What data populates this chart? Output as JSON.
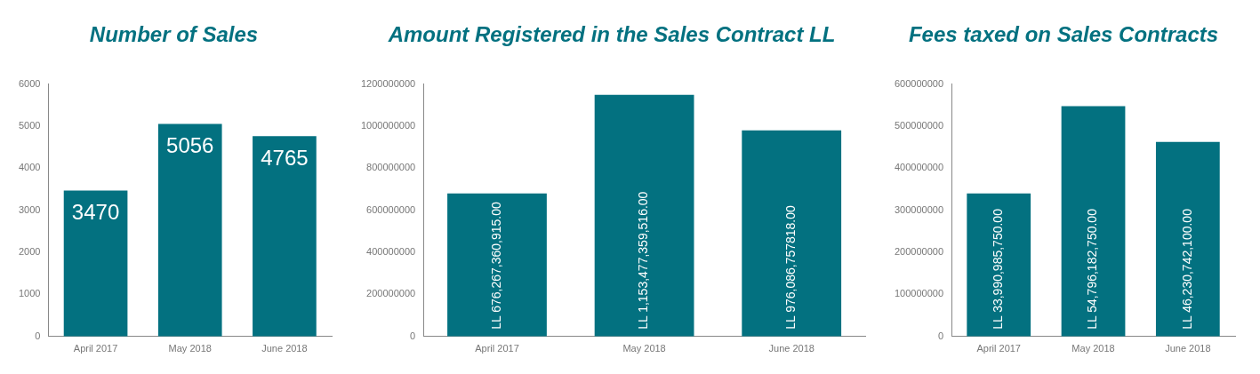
{
  "chart_data": [
    {
      "type": "bar",
      "title": "Number of Sales",
      "categories": [
        "April 2017",
        "May 2018",
        "June 2018"
      ],
      "values": [
        3470,
        5056,
        4765
      ],
      "color": "#037180",
      "ylim": [
        0,
        6000
      ],
      "yticks": [
        0,
        1000,
        2000,
        3000,
        4000,
        5000,
        6000
      ],
      "grid": false,
      "legend": false,
      "data_labels": true
    },
    {
      "type": "bar",
      "title": "Amount Registered in the Sales Contract LL",
      "categories": [
        "April 2017",
        "May 2018",
        "June 2018"
      ],
      "values": [
        680000000,
        1150000000,
        980000000
      ],
      "value_labels": [
        "LL 676,267,360,915.00",
        "LL 1,153,477,359,516.00",
        "LL 976,086,757818.00"
      ],
      "color": "#037180",
      "ylim": [
        0,
        1200000000
      ],
      "yticks": [
        0,
        200000000,
        400000000,
        600000000,
        800000000,
        1000000000,
        1200000000
      ],
      "grid": false,
      "legend": false
    },
    {
      "type": "bar",
      "title": "Fees taxed on Sales Contracts",
      "categories": [
        "April 2017",
        "May 2018",
        "June 2018"
      ],
      "values": [
        340000000,
        548000000,
        463000000
      ],
      "value_labels": [
        "LL 33,990,985,750.00",
        "LL 54,796,182,750.00",
        "LL 46,230,742,100.00"
      ],
      "color": "#037180",
      "ylim": [
        0,
        600000000
      ],
      "yticks": [
        0,
        100000000,
        200000000,
        300000000,
        400000000,
        500000000,
        600000000
      ],
      "grid": false,
      "legend": false
    }
  ]
}
